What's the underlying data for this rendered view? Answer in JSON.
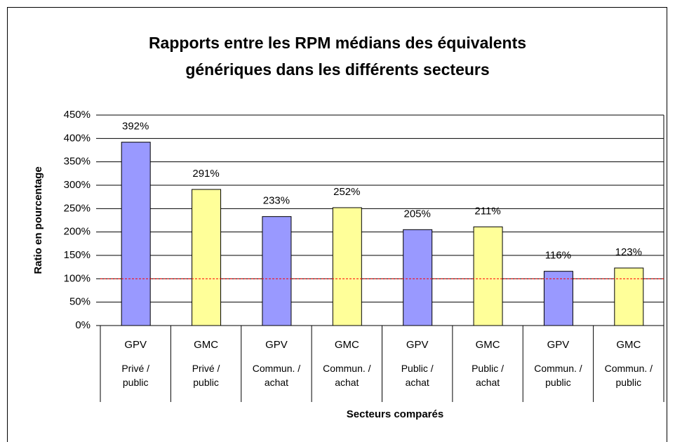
{
  "chart_data": {
    "type": "bar",
    "title": "Rapports entre les RPM médians des équivalents génériques dans les différents secteurs",
    "x_label": "Secteurs comparés",
    "y_label": "Ratio en pourcentage",
    "categories": [
      "GPV",
      "GMC",
      "GPV",
      "GMC",
      "GPV",
      "GMC",
      "GPV",
      "GMC"
    ],
    "subcategories": [
      "Privé / public",
      "Privé / public",
      "Commun. / achat",
      "Commun. / achat",
      "Public / achat",
      "Public / achat",
      "Commun. / public",
      "Commun. / public"
    ],
    "values": [
      392,
      291,
      233,
      252,
      205,
      211,
      116,
      123
    ],
    "value_labels": [
      "392%",
      "291%",
      "233%",
      "252%",
      "205%",
      "211%",
      "116%",
      "123%"
    ],
    "colors": [
      "#9999ff",
      "#ffff99",
      "#9999ff",
      "#ffff99",
      "#9999ff",
      "#ffff99",
      "#9999ff",
      "#ffff99"
    ],
    "ylim": [
      0,
      450
    ],
    "yticks": [
      {
        "value": 0,
        "label": "0%"
      },
      {
        "value": 50,
        "label": "50%"
      },
      {
        "value": 100,
        "label": "100%"
      },
      {
        "value": 150,
        "label": "150%"
      },
      {
        "value": 200,
        "label": "200%"
      },
      {
        "value": 250,
        "label": "250%"
      },
      {
        "value": 300,
        "label": "300%"
      },
      {
        "value": 350,
        "label": "350%"
      },
      {
        "value": 400,
        "label": "400%"
      },
      {
        "value": 450,
        "label": "450%"
      }
    ],
    "grid": true,
    "reference_line": {
      "value": 100,
      "color": "#ff0000"
    }
  }
}
